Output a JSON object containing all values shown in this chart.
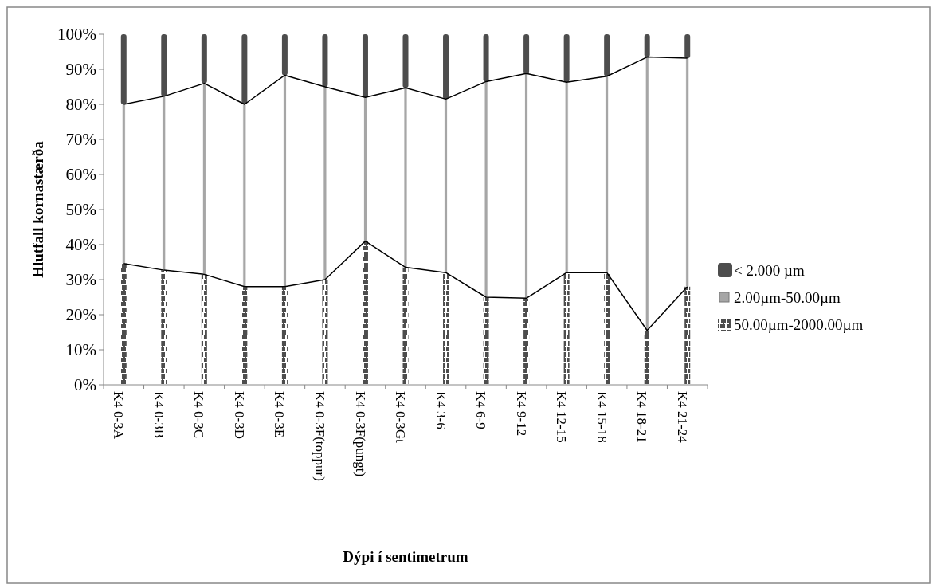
{
  "chart_data": {
    "type": "bar",
    "stacked": true,
    "xlabel": "Dýpi í sentimetrum",
    "ylabel": "Hlutfall kornastærða",
    "categories": [
      "K4 0-3A",
      "K4 0-3B",
      "K4 0-3C",
      "K4 0-3D",
      "K4 0-3E",
      "K4 0-3F(toppur)",
      "K4 0-3F(pungt)",
      "K4 0-3Gt",
      "K4 3-6",
      "K4 6-9",
      "K4 9-12",
      "K4 12-15",
      "K4 15-18",
      "K4 18-21",
      "K4 21-24"
    ],
    "series": [
      {
        "name": "50.00µm-2000.00µm",
        "color": "#4d4d4d",
        "values": [
          34.6,
          32.7,
          31.5,
          28,
          28,
          30,
          41,
          33.5,
          32,
          25,
          24.7,
          32,
          32,
          15.5,
          28
        ]
      },
      {
        "name": "2.00µm-50.00µm",
        "color": "#a6a6a6",
        "values": [
          45.4,
          49.6,
          54.5,
          52,
          60.3,
          55,
          41,
          51.2,
          49.5,
          61.5,
          64.1,
          54.3,
          56,
          78,
          65.2
        ]
      },
      {
        "name": "< 2.000 µm",
        "color": "#4d4d4d",
        "values": [
          20,
          17.7,
          14,
          20,
          11.7,
          15,
          18,
          15.3,
          18.5,
          13.5,
          11.2,
          13.7,
          12,
          6.5,
          6.8
        ]
      }
    ],
    "ylim": [
      0,
      100
    ],
    "yticks": [
      {
        "value": 0,
        "label": "0%"
      },
      {
        "value": 10,
        "label": "10%"
      },
      {
        "value": 20,
        "label": "20%"
      },
      {
        "value": 30,
        "label": "30%"
      },
      {
        "value": 40,
        "label": "40%"
      },
      {
        "value": 50,
        "label": "50%"
      },
      {
        "value": 60,
        "label": "60%"
      },
      {
        "value": 70,
        "label": "70%"
      },
      {
        "value": 80,
        "label": "80%"
      },
      {
        "value": 90,
        "label": "90%"
      },
      {
        "value": 100,
        "label": "100%"
      }
    ],
    "grid": false,
    "legend": "right"
  }
}
